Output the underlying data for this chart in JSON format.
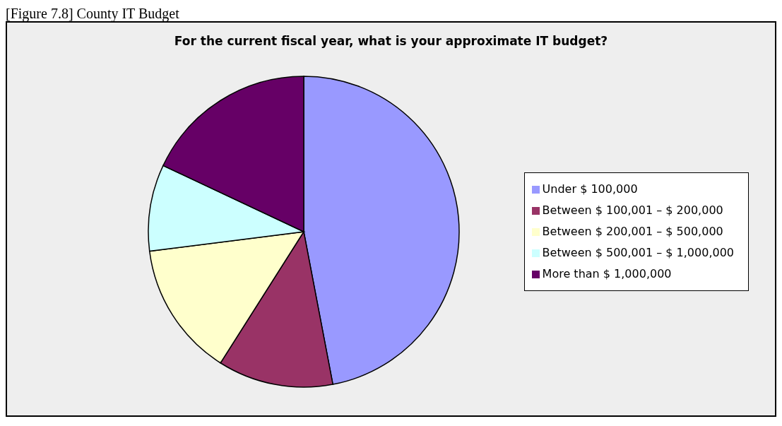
{
  "chart_data": {
    "type": "pie",
    "title": "For the current fiscal year, what is your approximate IT budget?",
    "annotations": [
      "[Figure 7.8] County IT Budget"
    ],
    "categories": [
      "Under $ 100,000",
      "Between $ 100,001 – $ 200,000",
      "Between $ 200,001 – $ 500,000",
      "Between $ 500,001 – $ 1,000,000",
      "More than $ 1,000,000"
    ],
    "values": [
      47,
      12,
      14,
      9,
      18
    ],
    "colors": [
      "#9999ff",
      "#993366",
      "#ffffcc",
      "#ccffff",
      "#660066"
    ],
    "legend": "right"
  }
}
